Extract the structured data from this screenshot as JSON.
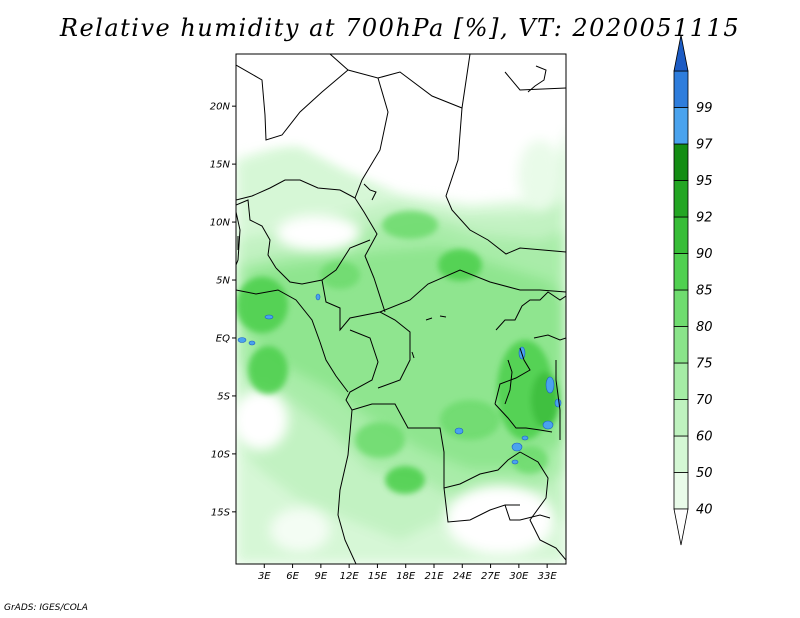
{
  "title": "Relative humidity at 700hPa [%], VT: 2020051115",
  "credit": "GrADS: IGES/COLA",
  "map": {
    "lat_range": [
      -19.5,
      24.5
    ],
    "lon_range": [
      0,
      35
    ],
    "lat_ticks": [
      {
        "value": 20,
        "label": "20N"
      },
      {
        "value": 15,
        "label": "15N"
      },
      {
        "value": 10,
        "label": "10N"
      },
      {
        "value": 5,
        "label": "5N"
      },
      {
        "value": 0,
        "label": "EQ"
      },
      {
        "value": -5,
        "label": "5S"
      },
      {
        "value": -10,
        "label": "10S"
      },
      {
        "value": -15,
        "label": "15S"
      }
    ],
    "lon_ticks": [
      {
        "value": 3,
        "label": "3E"
      },
      {
        "value": 6,
        "label": "6E"
      },
      {
        "value": 9,
        "label": "9E"
      },
      {
        "value": 12,
        "label": "12E"
      },
      {
        "value": 15,
        "label": "15E"
      },
      {
        "value": 18,
        "label": "18E"
      },
      {
        "value": 21,
        "label": "21E"
      },
      {
        "value": 24,
        "label": "24E"
      },
      {
        "value": 27,
        "label": "27E"
      },
      {
        "value": 30,
        "label": "30E"
      },
      {
        "value": 33,
        "label": "33E"
      }
    ]
  },
  "legend": {
    "levels": [
      {
        "label": "40",
        "color": "#e9fbe9"
      },
      {
        "label": "50",
        "color": "#d4f7d4"
      },
      {
        "label": "60",
        "color": "#bff2bf"
      },
      {
        "label": "70",
        "color": "#a5eca5"
      },
      {
        "label": "75",
        "color": "#8ae48a"
      },
      {
        "label": "80",
        "color": "#6fdc6f"
      },
      {
        "label": "85",
        "color": "#50d050"
      },
      {
        "label": "90",
        "color": "#37bd37"
      },
      {
        "label": "92",
        "color": "#23a623"
      },
      {
        "label": "95",
        "color": "#138d13"
      },
      {
        "label": "97",
        "color": "#4aa3ee"
      },
      {
        "label": "99",
        "color": "#2e7ddc"
      }
    ],
    "top_arrow_color": "#1d5cc4",
    "bottom_arrow_color": "#ffffff"
  }
}
